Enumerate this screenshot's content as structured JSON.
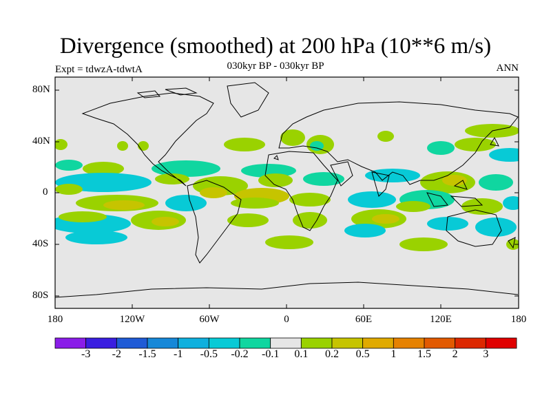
{
  "title": "Divergence (smoothed) at 200 hPa (10**6 m/s)",
  "subtitle": "030kyr BP - 030kyr BP",
  "expt_label": "Expt = tdwzA-tdwtA",
  "period_label": "ANN",
  "axes": {
    "y_ticks": [
      "80N",
      "40N",
      "0",
      "40S",
      "80S"
    ],
    "x_ticks": [
      "180",
      "120W",
      "60W",
      "0",
      "60E",
      "120E",
      "180"
    ]
  },
  "colorbar": {
    "labels": [
      "-3",
      "-2",
      "-1.5",
      "-1",
      "-0.5",
      "-0.2",
      "-0.1",
      "0.1",
      "0.2",
      "0.5",
      "1",
      "1.5",
      "2",
      "3"
    ],
    "colors": [
      "#8a1de8",
      "#3a1ee0",
      "#1f5bd6",
      "#1688d8",
      "#0fb0de",
      "#08cad6",
      "#10d6a0",
      "#e6e6e6",
      "#9ad200",
      "#c6c400",
      "#e0aa00",
      "#e68200",
      "#e25a00",
      "#dc2800",
      "#e00000"
    ]
  },
  "colors": {
    "neutral": "#e6e6e6",
    "cyan": "#08cad6",
    "green": "#9ad200",
    "olive": "#c6c400",
    "teal": "#10d6a0"
  }
}
